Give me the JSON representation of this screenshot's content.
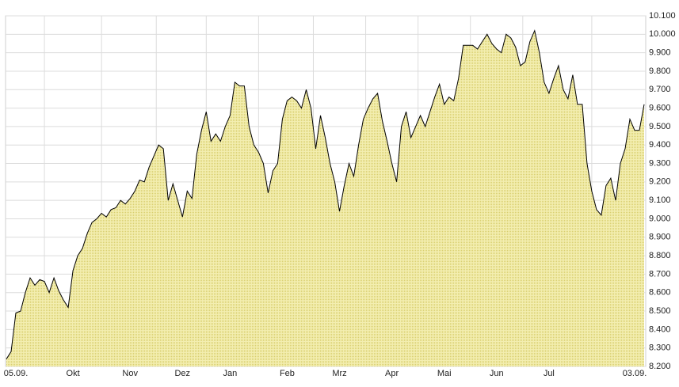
{
  "chart_data": {
    "type": "area",
    "color": "#ece49a",
    "line_color": "#000000",
    "grid": true,
    "categories": [
      null,
      null,
      "05.09.",
      null,
      null,
      null,
      null,
      null,
      null,
      null,
      null,
      null,
      null,
      null,
      "Okt",
      null,
      null,
      null,
      null,
      null,
      null,
      null,
      null,
      null,
      null,
      null,
      "Nov",
      null,
      null,
      null,
      null,
      null,
      null,
      null,
      null,
      null,
      null,
      "Dez",
      null,
      null,
      null,
      null,
      null,
      null,
      null,
      null,
      null,
      "Jan",
      null,
      null,
      null,
      null,
      null,
      null,
      null,
      null,
      null,
      null,
      null,
      "Feb",
      null,
      null,
      null,
      null,
      null,
      null,
      null,
      null,
      null,
      null,
      "Mrz",
      null,
      null,
      null,
      null,
      null,
      null,
      null,
      null,
      null,
      null,
      "Apr",
      null,
      null,
      null,
      null,
      null,
      null,
      null,
      null,
      null,
      null,
      "Mai",
      null,
      null,
      null,
      null,
      null,
      null,
      null,
      null,
      null,
      null,
      "Jun",
      null,
      null,
      null,
      null,
      null,
      null,
      null,
      null,
      null,
      null,
      "Jul",
      null,
      null,
      null,
      null,
      null,
      null,
      null,
      null,
      null,
      null,
      null,
      null,
      null,
      null,
      null,
      null,
      null,
      "03.09.",
      null,
      null
    ],
    "values": [
      8240,
      8280,
      8490,
      8500,
      8600,
      8680,
      8640,
      8670,
      8660,
      8600,
      8680,
      8610,
      8560,
      8520,
      8720,
      8800,
      8840,
      8920,
      8980,
      9000,
      9030,
      9010,
      9050,
      9060,
      9100,
      9080,
      9110,
      9150,
      9210,
      9200,
      9280,
      9340,
      9400,
      9380,
      9100,
      9190,
      9100,
      9010,
      9150,
      9110,
      9350,
      9480,
      9580,
      9420,
      9460,
      9420,
      9500,
      9560,
      9740,
      9720,
      9720,
      9500,
      9400,
      9360,
      9300,
      9140,
      9260,
      9300,
      9540,
      9640,
      9660,
      9640,
      9600,
      9700,
      9600,
      9380,
      9560,
      9440,
      9300,
      9200,
      9040,
      9180,
      9300,
      9230,
      9400,
      9540,
      9600,
      9650,
      9680,
      9530,
      9420,
      9300,
      9200,
      9500,
      9580,
      9440,
      9500,
      9560,
      9500,
      9580,
      9660,
      9730,
      9620,
      9660,
      9640,
      9760,
      9940,
      9940,
      9940,
      9920,
      9960,
      10000,
      9950,
      9920,
      9900,
      10000,
      9980,
      9930,
      9830,
      9850,
      9960,
      10020,
      9900,
      9740,
      9680,
      9760,
      9830,
      9700,
      9650,
      9780,
      9620,
      9620,
      9300,
      9150,
      9050,
      9020,
      9180,
      9220,
      9100,
      9300,
      9380,
      9540,
      9480,
      9480,
      9620
    ],
    "ylim": [
      8200,
      10100
    ],
    "yticks": [
      {
        "value": 8200,
        "label": "8.200"
      },
      {
        "value": 8300,
        "label": "8.300"
      },
      {
        "value": 8400,
        "label": "8.400"
      },
      {
        "value": 8500,
        "label": "8.500"
      },
      {
        "value": 8600,
        "label": "8.600"
      },
      {
        "value": 8700,
        "label": "8.700"
      },
      {
        "value": 8800,
        "label": "8.800"
      },
      {
        "value": 8900,
        "label": "8.900"
      },
      {
        "value": 9000,
        "label": "9.000"
      },
      {
        "value": 9100,
        "label": "9.100"
      },
      {
        "value": 9200,
        "label": "9.200"
      },
      {
        "value": 9300,
        "label": "9.300"
      },
      {
        "value": 9400,
        "label": "9.400"
      },
      {
        "value": 9500,
        "label": "9.500"
      },
      {
        "value": 9600,
        "label": "9.600"
      },
      {
        "value": 9700,
        "label": "9.700"
      },
      {
        "value": 9800,
        "label": "9.800"
      },
      {
        "value": 9900,
        "label": "9.900"
      },
      {
        "value": 10000,
        "label": "10.000"
      },
      {
        "value": 10100,
        "label": "10.100"
      }
    ]
  }
}
